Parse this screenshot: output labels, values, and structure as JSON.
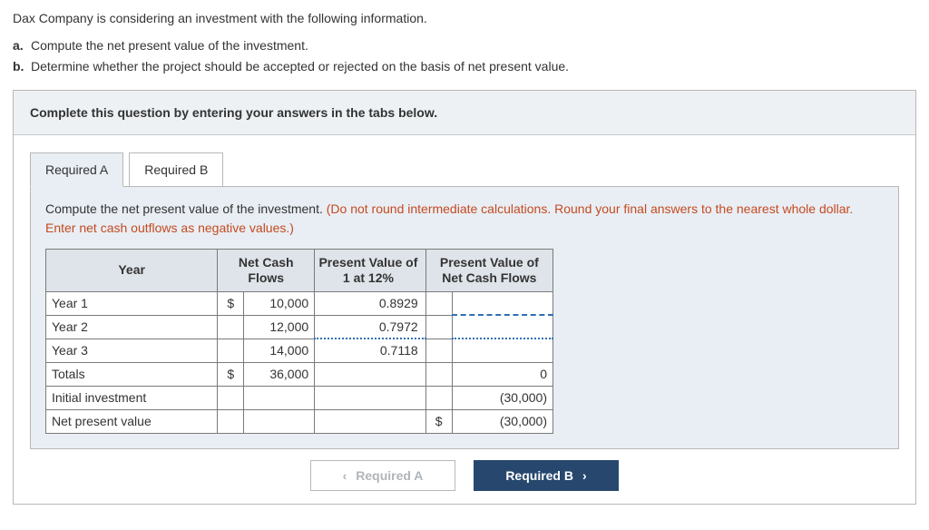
{
  "intro": {
    "lead": "Dax Company is considering an investment with the following information.",
    "parts": [
      {
        "label": "a.",
        "text": "Compute the net present value of the investment."
      },
      {
        "label": "b.",
        "text": "Determine whether the project should be accepted or rejected on the basis of net present value."
      }
    ]
  },
  "banner": "Complete this question by entering your answers in the tabs below.",
  "tabs": {
    "a": "Required A",
    "b": "Required B",
    "active": "a"
  },
  "instruction": {
    "black": "Compute the net present value of the investment. ",
    "red": "(Do not round intermediate calculations. Round your final answers to the nearest whole dollar. Enter net cash outflows as negative values.)"
  },
  "table": {
    "headers": {
      "year": "Year",
      "ncf": "Net Cash Flows",
      "pvf": "Present Value of 1 at 12%",
      "pvcf": "Present Value of Net Cash Flows"
    },
    "rows": [
      {
        "label": "Year 1",
        "dollar": "$",
        "amount": "10,000",
        "pvf": "0.8929",
        "pv_dollar": "",
        "pv": ""
      },
      {
        "label": "Year 2",
        "dollar": "",
        "amount": "12,000",
        "pvf": "0.7972",
        "pv_dollar": "",
        "pv": ""
      },
      {
        "label": "Year 3",
        "dollar": "",
        "amount": "14,000",
        "pvf": "0.7118",
        "pv_dollar": "",
        "pv": ""
      },
      {
        "label": "Totals",
        "dollar": "$",
        "amount": "36,000",
        "pvf": "",
        "pv_dollar": "",
        "pv": "0"
      },
      {
        "label": "Initial investment",
        "dollar": "",
        "amount": "",
        "pvf": "",
        "pv_dollar": "",
        "pv": "(30,000)"
      },
      {
        "label": "Net present value",
        "dollar": "",
        "amount": "",
        "pvf": "",
        "pv_dollar": "$",
        "pv": "(30,000)"
      }
    ]
  },
  "nav": {
    "prev": "Required A",
    "next": "Required B"
  }
}
